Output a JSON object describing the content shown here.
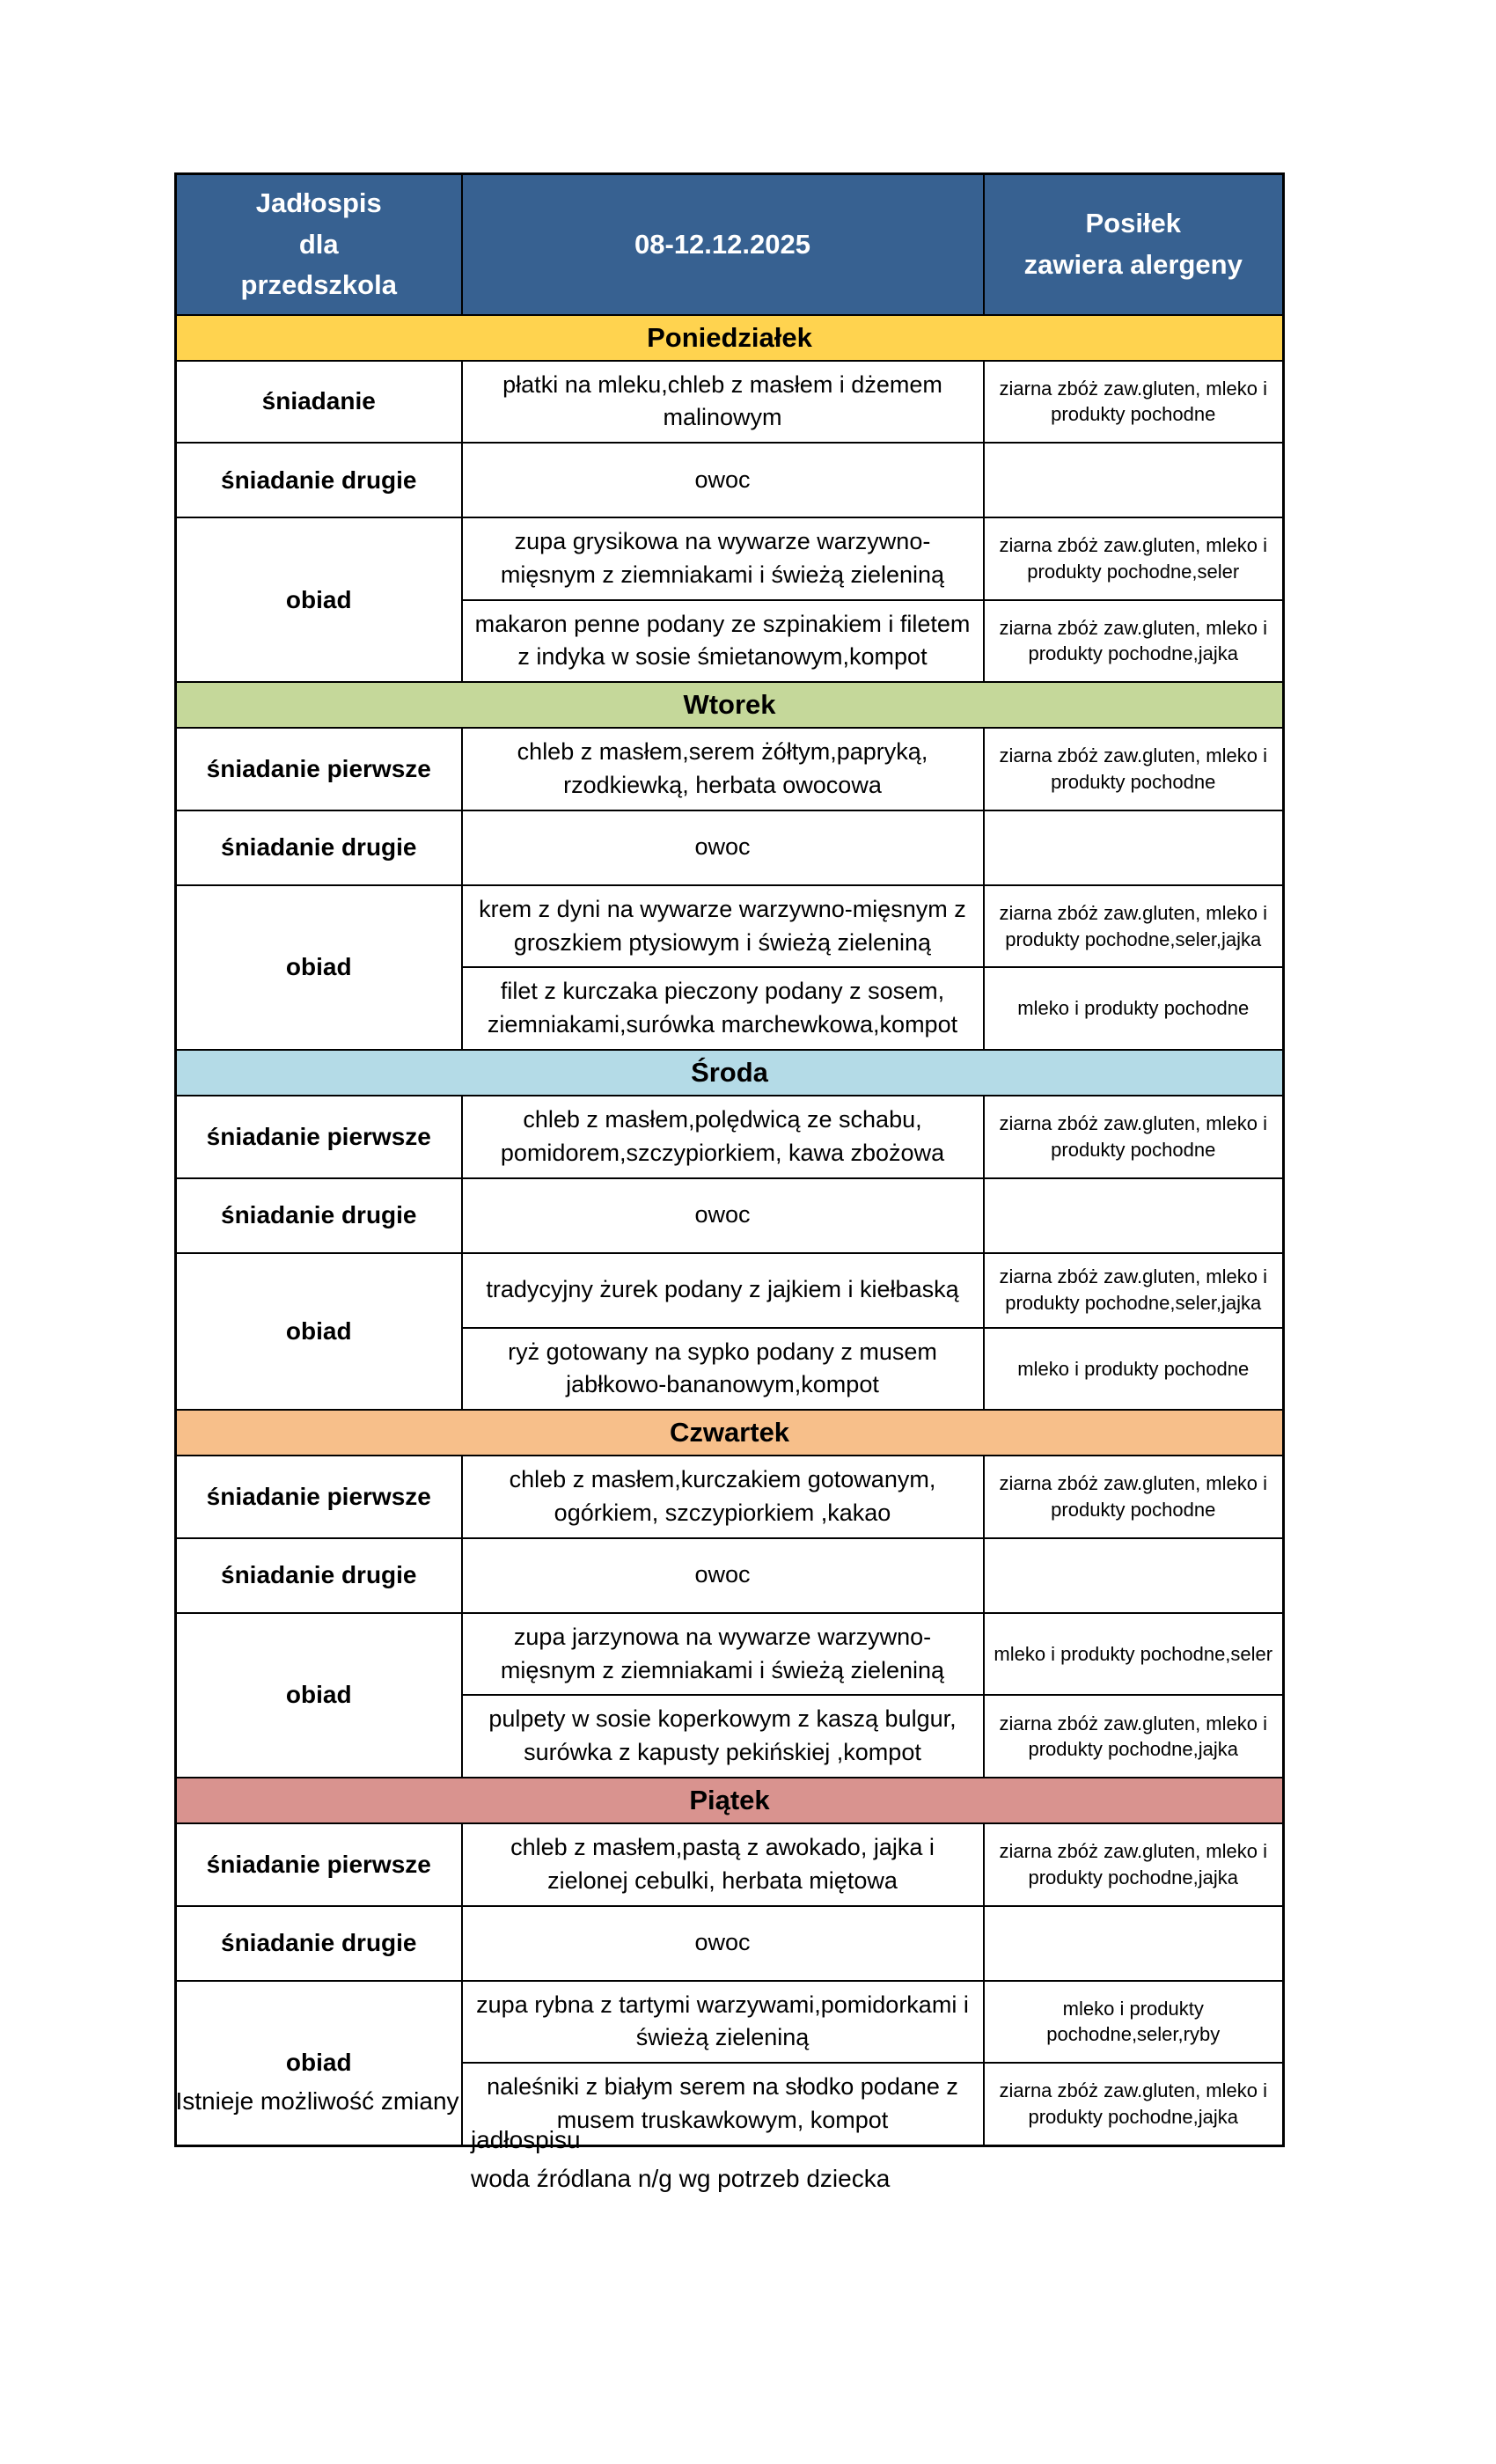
{
  "colors": {
    "header_bg": "#376191",
    "border": "#000000",
    "page_bg": "#FFFFFF"
  },
  "header": {
    "title": "Jadłospis\ndla\nprzedszkola",
    "date_range": "08-12.12.2025",
    "allergens_col": "Posiłek\nzawiera alergeny"
  },
  "days": [
    {
      "name": "Poniedziałek",
      "color": "#FFD34F",
      "breakfast": {
        "label": "śniadanie",
        "menu": "płatki na mleku,chleb z masłem i dżemem malinowym",
        "allergens": "ziarna zbóż zaw.gluten, mleko i produkty pochodne"
      },
      "second_breakfast": {
        "label": "śniadanie drugie",
        "menu": "owoc",
        "allergens": ""
      },
      "dinner": {
        "label": "obiad",
        "course1": {
          "menu": "zupa grysikowa na wywarze warzywno-mięsnym z ziemniakami i świeżą zieleniną",
          "allergens": "ziarna zbóż zaw.gluten, mleko i produkty pochodne,seler"
        },
        "course2": {
          "menu": "makaron penne podany ze szpinakiem i filetem z indyka w sosie śmietanowym,kompot",
          "allergens": "ziarna zbóż zaw.gluten, mleko i produkty pochodne,jajka"
        }
      }
    },
    {
      "name": "Wtorek",
      "color": "#C5D89A",
      "breakfast": {
        "label": "śniadanie pierwsze",
        "menu": "chleb z masłem,serem żółtym,papryką, rzodkiewką, herbata owocowa",
        "allergens": "ziarna zbóż zaw.gluten, mleko i produkty pochodne"
      },
      "second_breakfast": {
        "label": "śniadanie drugie",
        "menu": "owoc",
        "allergens": ""
      },
      "dinner": {
        "label": "obiad",
        "course1": {
          "menu": "krem z dyni na wywarze warzywno-mięsnym z groszkiem ptysiowym i świeżą zieleniną",
          "allergens": "ziarna zbóż zaw.gluten, mleko i produkty pochodne,seler,jajka"
        },
        "course2": {
          "menu": "filet z kurczaka pieczony podany z sosem, ziemniakami,surówka marchewkowa,kompot",
          "allergens": "mleko i produkty pochodne"
        }
      }
    },
    {
      "name": "Środa",
      "color": "#B4DBE7",
      "breakfast": {
        "label": "śniadanie pierwsze",
        "menu": "chleb z masłem,polędwicą ze schabu, pomidorem,szczypiorkiem, kawa zbożowa",
        "allergens": "ziarna zbóż zaw.gluten, mleko i produkty pochodne"
      },
      "second_breakfast": {
        "label": "śniadanie drugie",
        "menu": "owoc",
        "allergens": ""
      },
      "dinner": {
        "label": "obiad",
        "course1": {
          "menu": "tradycyjny żurek podany z  jajkiem i kiełbaską",
          "allergens": "ziarna zbóż zaw.gluten, mleko i produkty pochodne,seler,jajka"
        },
        "course2": {
          "menu": "ryż gotowany na sypko podany z musem jabłkowo-bananowym,kompot",
          "allergens": "mleko i produkty pochodne"
        }
      }
    },
    {
      "name": "Czwartek",
      "color": "#F7BF8A",
      "breakfast": {
        "label": "śniadanie pierwsze",
        "menu": "chleb z masłem,kurczakiem gotowanym, ogórkiem, szczypiorkiem ,kakao",
        "allergens": "ziarna zbóż zaw.gluten, mleko i produkty pochodne"
      },
      "second_breakfast": {
        "label": "śniadanie drugie",
        "menu": "owoc",
        "allergens": ""
      },
      "dinner": {
        "label": "obiad",
        "course1": {
          "menu": "zupa jarzynowa na wywarze warzywno-mięsnym z ziemniakami i świeżą zieleniną",
          "allergens": "mleko i produkty pochodne,seler"
        },
        "course2": {
          "menu": "pulpety w sosie koperkowym z kaszą bulgur, surówka z kapusty pekińskiej ,kompot",
          "allergens": "ziarna zbóż zaw.gluten, mleko i produkty pochodne,jajka"
        }
      }
    },
    {
      "name": "Piątek",
      "color": "#D9938F",
      "breakfast": {
        "label": "śniadanie pierwsze",
        "menu": "chleb z masłem,pastą z awokado, jajka i zielonej cebulki, herbata miętowa",
        "allergens": "ziarna zbóż zaw.gluten, mleko i produkty pochodne,jajka"
      },
      "second_breakfast": {
        "label": "śniadanie drugie",
        "menu": "owoc",
        "allergens": ""
      },
      "dinner": {
        "label": "obiad",
        "course1": {
          "menu": "zupa rybna z tartymi warzywami,pomidorkami i świeżą zieleniną",
          "allergens": "mleko i produkty pochodne,seler,ryby"
        },
        "course2": {
          "menu": "naleśniki z białym serem na słodko podane z musem truskawkowym, kompot",
          "allergens": "ziarna zbóż zaw.gluten, mleko i produkty pochodne,jajka"
        }
      }
    }
  ],
  "footer": {
    "left_note": "Istnieje możliwość zmiany",
    "right_line1": "jadłospisu",
    "right_line2": "woda źródlana n/g wg potrzeb dziecka"
  }
}
